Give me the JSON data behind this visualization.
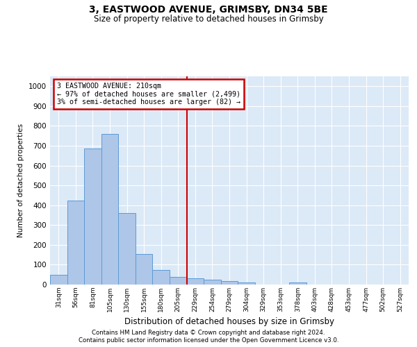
{
  "title1": "3, EASTWOOD AVENUE, GRIMSBY, DN34 5BE",
  "title2": "Size of property relative to detached houses in Grimsby",
  "xlabel": "Distribution of detached houses by size in Grimsby",
  "ylabel": "Number of detached properties",
  "footnote1": "Contains HM Land Registry data © Crown copyright and database right 2024.",
  "footnote2": "Contains public sector information licensed under the Open Government Licence v3.0.",
  "bar_labels": [
    "31sqm",
    "56sqm",
    "81sqm",
    "105sqm",
    "130sqm",
    "155sqm",
    "180sqm",
    "205sqm",
    "229sqm",
    "254sqm",
    "279sqm",
    "304sqm",
    "329sqm",
    "353sqm",
    "378sqm",
    "403sqm",
    "428sqm",
    "453sqm",
    "477sqm",
    "502sqm",
    "527sqm"
  ],
  "bar_values": [
    50,
    425,
    685,
    760,
    360,
    155,
    75,
    40,
    30,
    25,
    17,
    10,
    0,
    0,
    10,
    0,
    0,
    0,
    0,
    0,
    0
  ],
  "bar_color": "#aec6e8",
  "bar_edge_color": "#5b9bd5",
  "vline_pos": 7.5,
  "vline_color": "#cc0000",
  "ylim": [
    0,
    1050
  ],
  "yticks": [
    0,
    100,
    200,
    300,
    400,
    500,
    600,
    700,
    800,
    900,
    1000
  ],
  "annotation_title": "3 EASTWOOD AVENUE: 210sqm",
  "annotation_line1": "← 97% of detached houses are smaller (2,499)",
  "annotation_line2": "3% of semi-detached houses are larger (82) →",
  "annotation_box_color": "#cc0000",
  "bg_color": "#dce9f7"
}
